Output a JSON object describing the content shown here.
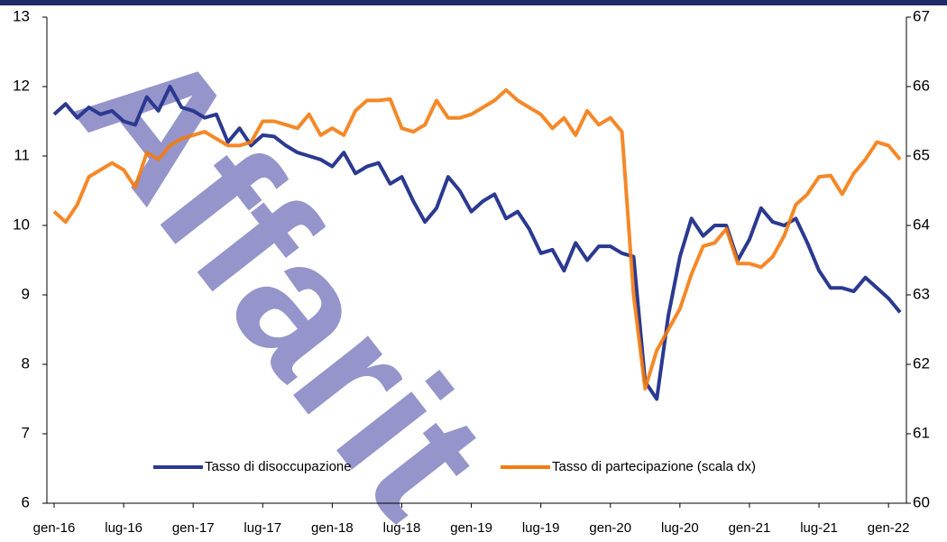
{
  "chart_data": {
    "type": "line",
    "watermark": "Affarit",
    "categories": [
      "gen-16",
      null,
      null,
      null,
      null,
      null,
      "lug-16",
      null,
      null,
      null,
      null,
      null,
      "gen-17",
      null,
      null,
      null,
      null,
      null,
      "lug-17",
      null,
      null,
      null,
      null,
      null,
      "gen-18",
      null,
      null,
      null,
      null,
      null,
      "lug-18",
      null,
      null,
      null,
      null,
      null,
      "gen-19",
      null,
      null,
      null,
      null,
      null,
      "lug-19",
      null,
      null,
      null,
      null,
      null,
      "gen-20",
      null,
      null,
      null,
      null,
      null,
      "lug-20",
      null,
      null,
      null,
      null,
      null,
      "gen-21",
      null,
      null,
      null,
      null,
      null,
      "lug-21",
      null,
      null,
      null,
      null,
      null,
      "gen-22",
      null
    ],
    "series": [
      {
        "name": "Tasso di disoccupazione",
        "color": "#2b3990",
        "axis": "y",
        "values": [
          11.6,
          11.75,
          11.55,
          11.7,
          11.6,
          11.65,
          11.5,
          11.45,
          11.85,
          11.65,
          12.0,
          11.7,
          11.65,
          11.55,
          11.6,
          11.2,
          11.4,
          11.15,
          11.3,
          11.28,
          11.15,
          11.05,
          11.0,
          10.95,
          10.85,
          11.05,
          10.75,
          10.85,
          10.9,
          10.6,
          10.7,
          10.35,
          10.05,
          10.25,
          10.7,
          10.5,
          10.2,
          10.35,
          10.45,
          10.1,
          10.2,
          9.95,
          9.6,
          9.65,
          9.35,
          9.75,
          9.5,
          9.7,
          9.7,
          9.6,
          9.55,
          7.75,
          7.5,
          8.7,
          9.55,
          10.1,
          9.85,
          10.0,
          10.0,
          9.5,
          9.8,
          10.25,
          10.05,
          10.0,
          10.1,
          9.75,
          9.35,
          9.1,
          9.1,
          9.05,
          9.25,
          9.1,
          8.95,
          8.75
        ]
      },
      {
        "name": "Tasso di partecipazione (scala dx)",
        "color": "#f47b0f",
        "axis": "y2",
        "values": [
          64.2,
          64.05,
          64.3,
          64.7,
          64.8,
          64.9,
          64.8,
          64.55,
          65.05,
          64.95,
          65.15,
          65.25,
          65.3,
          65.35,
          65.25,
          65.15,
          65.15,
          65.2,
          65.5,
          65.5,
          65.45,
          65.4,
          65.6,
          65.3,
          65.4,
          65.3,
          65.65,
          65.8,
          65.8,
          65.82,
          65.4,
          65.35,
          65.45,
          65.8,
          65.55,
          65.55,
          65.6,
          65.7,
          65.8,
          65.95,
          65.8,
          65.7,
          65.6,
          65.4,
          65.55,
          65.3,
          65.65,
          65.45,
          65.55,
          65.35,
          63.0,
          61.65,
          62.2,
          62.5,
          62.8,
          63.3,
          63.7,
          63.75,
          63.95,
          63.45,
          63.45,
          63.4,
          63.55,
          63.85,
          64.3,
          64.45,
          64.7,
          64.72,
          64.45,
          64.75,
          64.95,
          65.2,
          65.15,
          64.95
        ]
      }
    ],
    "ylim": [
      6,
      13
    ],
    "yticks": [
      6,
      7,
      8,
      9,
      10,
      11,
      12,
      13
    ],
    "y2lim": [
      60,
      67
    ],
    "y2ticks": [
      60,
      61,
      62,
      63,
      64,
      65,
      66,
      67
    ],
    "legend": "bottom"
  }
}
